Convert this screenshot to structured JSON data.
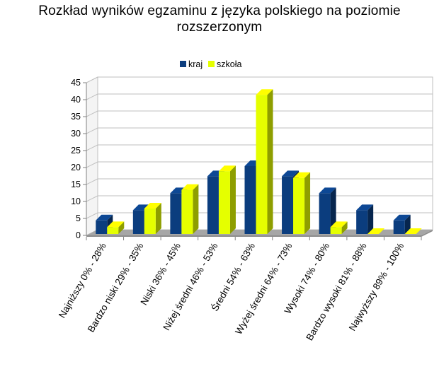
{
  "chart_data": {
    "type": "bar",
    "title": "Rozkład wyników egzaminu z języka polskiego na poziomie rozszerzonym",
    "categories": [
      "Najniższy 0% - 28%",
      "Bardzo niski 29% - 35%",
      "Niski 36% - 45%",
      "Niżej średni 46% - 53%",
      "Średni 54% - 63%",
      "Wyżej średni 64% - 73%",
      "Wysoki 74% - 80%",
      "Bardzo wysoki 81% - 88%",
      "Najwyższy 89% - 100%"
    ],
    "series": [
      {
        "name": "kraj",
        "color": "#0b3d7e",
        "values": [
          4,
          7,
          12,
          17,
          20,
          17,
          12,
          7,
          4
        ]
      },
      {
        "name": "szkoła",
        "color": "#e5ff00",
        "values": [
          2,
          7.5,
          13,
          18.5,
          41,
          16.5,
          2,
          0,
          0
        ]
      }
    ],
    "ylim": [
      0,
      45
    ],
    "yticks": [
      "0",
      "5",
      "10",
      "15",
      "20",
      "25",
      "30",
      "35",
      "40",
      "45"
    ],
    "xlabel": "",
    "ylabel": "",
    "grid": true,
    "legend": "top"
  }
}
